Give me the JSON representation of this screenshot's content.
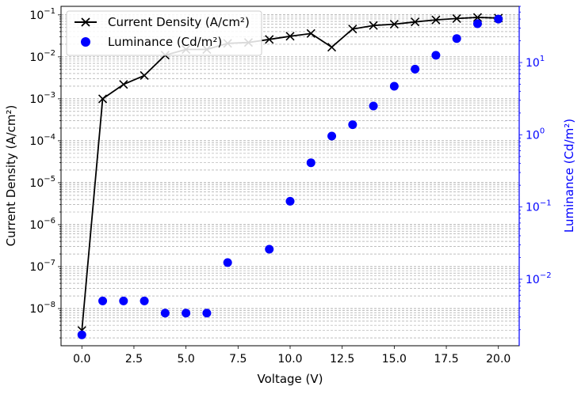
{
  "chart_data": {
    "type": "line",
    "xlabel": "Voltage (V)",
    "ylabel": "Current Density (A/cm²)",
    "ylabel_right": "Luminance (Cd/m²)",
    "xlim": [
      -1.0,
      21.0
    ],
    "ylim": [
      1.3e-09,
      0.16
    ],
    "ylim_right": [
      0.0012,
      60
    ],
    "yscale": "log",
    "yscale_right": "log",
    "x_ticks": [
      0.0,
      2.5,
      5.0,
      7.5,
      10.0,
      12.5,
      15.0,
      17.5,
      20.0
    ],
    "x_tick_labels": [
      "0.0",
      "2.5",
      "5.0",
      "7.5",
      "10.0",
      "12.5",
      "15.0",
      "17.5",
      "20.0"
    ],
    "y_ticks": [
      1e-08,
      1e-07,
      1e-06,
      1e-05,
      0.0001,
      0.001,
      0.01,
      0.1
    ],
    "y_tick_labels": [
      "10^-8",
      "10^-7",
      "10^-6",
      "10^-5",
      "10^-4",
      "10^-3",
      "10^-2",
      "10^-1"
    ],
    "y_ticks_right": [
      0.01,
      0.1,
      1,
      10
    ],
    "y_tick_labels_right": [
      "10^-2",
      "10^-1",
      "10^0",
      "10^1"
    ],
    "grid": "horizontal major and minor on left axis, dashed",
    "legend_position": "top-left",
    "series": [
      {
        "name": "Current Density (A/cm²)",
        "axis": "left",
        "style": "line",
        "marker": "x",
        "color": "#000000",
        "x": [
          0,
          1,
          2,
          3,
          4,
          5,
          6,
          7,
          8,
          9,
          10,
          11,
          12,
          13,
          14,
          15,
          16,
          17,
          18,
          19,
          20
        ],
        "y": [
          3e-09,
          0.001,
          0.0022,
          0.0036,
          0.011,
          0.015,
          0.015,
          0.021,
          0.022,
          0.026,
          0.031,
          0.036,
          0.017,
          0.046,
          0.056,
          0.06,
          0.068,
          0.076,
          0.082,
          0.087,
          0.084
        ]
      },
      {
        "name": "Luminance (Cd/m²)",
        "axis": "right",
        "style": "scatter",
        "marker": "o",
        "color": "#0000ff",
        "x": [
          0,
          1,
          2,
          3,
          4,
          5,
          6,
          7,
          9,
          10,
          11,
          12,
          13,
          14,
          15,
          16,
          17,
          18,
          19,
          20
        ],
        "y": [
          0.0017,
          0.005,
          0.005,
          0.005,
          0.0034,
          0.0034,
          0.0034,
          0.017,
          0.026,
          0.12,
          0.41,
          0.96,
          1.38,
          2.5,
          4.7,
          8.1,
          12.6,
          21.5,
          34.5,
          40
        ]
      }
    ]
  }
}
